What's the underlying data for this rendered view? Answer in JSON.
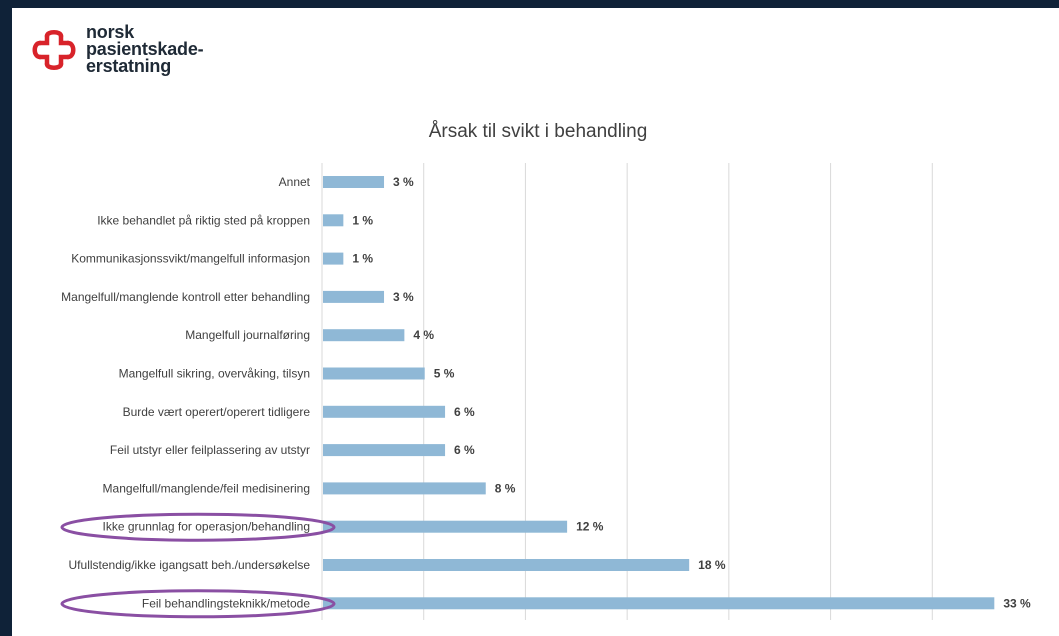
{
  "brand": {
    "logo_lines": [
      "norsk",
      "pasientskade-",
      "erstatning"
    ],
    "logo_color": "#d8232a"
  },
  "colors": {
    "bar": "#8fb8d6",
    "grid": "#d9d9d9",
    "highlight_ellipse": "#8a4fa3",
    "frame": "#0f2238"
  },
  "chart_data": {
    "type": "bar",
    "orientation": "horizontal",
    "title": "Årsak til svikt i behandling",
    "categories": [
      "Annet",
      "Ikke behandlet på riktig sted på kroppen",
      "Kommunikasjonssvikt/mangelfull informasjon",
      "Mangelfull/manglende kontroll etter behandling",
      "Mangelfull journalføring",
      "Mangelfull sikring, overvåking, tilsyn",
      "Burde vært operert/operert tidligere",
      "Feil utstyr eller feilplassering av utstyr",
      "Mangelfull/manglende/feil medisinering",
      "Ikke grunnlag for operasjon/behandling",
      "Ufullstendig/ikke igangsatt beh./undersøkelse",
      "Feil behandlingsteknikk/metode"
    ],
    "values": [
      3,
      1,
      1,
      3,
      4,
      5,
      6,
      6,
      8,
      12,
      18,
      33
    ],
    "value_labels": [
      "3 %",
      "1 %",
      "1 %",
      "3 %",
      "4 %",
      "5 %",
      "6 %",
      "6 %",
      "8 %",
      "12 %",
      "18 %",
      "33 %"
    ],
    "xlim": [
      0,
      35
    ],
    "grid": true,
    "x_tick_labels_visible": false,
    "highlighted_categories": [
      "Ikke grunnlag for operasjon/behandling",
      "Feil behandlingsteknikk/metode"
    ]
  }
}
